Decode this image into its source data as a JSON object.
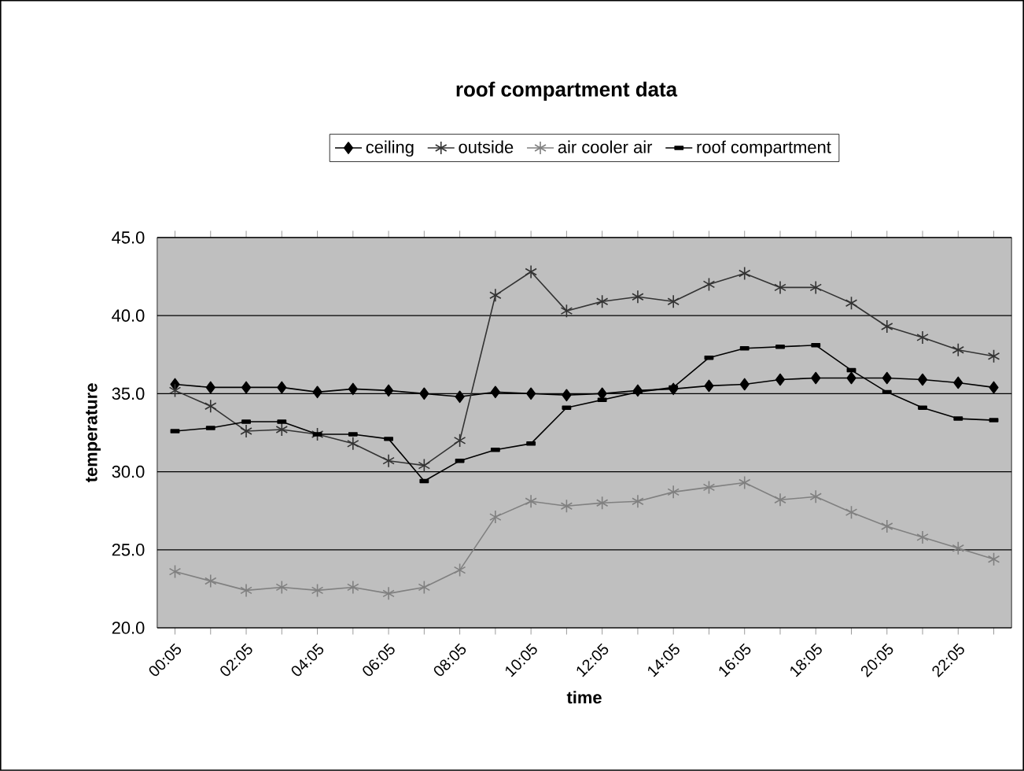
{
  "chart_data": {
    "type": "line",
    "title": "roof compartment data",
    "xlabel": "time",
    "ylabel": "temperature",
    "categories": [
      "00:05",
      null,
      "02:05",
      null,
      "04:05",
      null,
      "06:05",
      null,
      "08:05",
      null,
      "10:05",
      null,
      "12:05",
      null,
      "14:05",
      null,
      "16:05",
      null,
      "18:05",
      null,
      "20:05",
      null,
      "22:05",
      null
    ],
    "series": [
      {
        "name": "ceiling",
        "color": "#000000",
        "marker": "diamond",
        "values": [
          35.6,
          35.4,
          35.4,
          35.4,
          35.1,
          35.3,
          35.2,
          35.0,
          34.8,
          35.1,
          35.0,
          34.9,
          35.0,
          35.2,
          35.3,
          35.5,
          35.6,
          35.9,
          36.0,
          36.0,
          36.0,
          35.9,
          35.7,
          35.4
        ]
      },
      {
        "name": "outside",
        "color": "#333333",
        "marker": "cross",
        "values": [
          35.2,
          34.2,
          32.6,
          32.7,
          32.4,
          31.8,
          30.7,
          30.4,
          32.0,
          41.3,
          42.8,
          40.3,
          40.9,
          41.2,
          40.9,
          42.0,
          42.7,
          41.8,
          41.8,
          40.8,
          39.3,
          38.6,
          37.8,
          37.4
        ]
      },
      {
        "name": "air cooler air",
        "color": "#808080",
        "marker": "cross",
        "values": [
          23.6,
          23.0,
          22.4,
          22.6,
          22.4,
          22.6,
          22.2,
          22.6,
          23.7,
          27.1,
          28.1,
          27.8,
          28.0,
          28.1,
          28.7,
          29.0,
          29.3,
          28.2,
          28.4,
          27.4,
          26.5,
          25.8,
          25.1,
          24.4
        ]
      },
      {
        "name": "roof compartment",
        "color": "#000000",
        "marker": "square",
        "values": [
          32.6,
          32.8,
          33.2,
          33.2,
          32.4,
          32.4,
          32.1,
          29.4,
          30.7,
          31.4,
          31.8,
          34.1,
          34.6,
          35.1,
          35.4,
          37.3,
          37.9,
          38.0,
          38.1,
          36.5,
          35.1,
          34.1,
          33.4,
          33.3
        ]
      }
    ],
    "ylim": [
      20,
      45
    ],
    "yticks": [
      {
        "value": 20,
        "label": "20.0"
      },
      {
        "value": 25,
        "label": "25.0"
      },
      {
        "value": 30,
        "label": "30.0"
      },
      {
        "value": 35,
        "label": "35.0"
      },
      {
        "value": 40,
        "label": "40.0"
      },
      {
        "value": 45,
        "label": "45.0"
      }
    ],
    "grid": "y",
    "legend": "top",
    "line_style": "solid"
  }
}
